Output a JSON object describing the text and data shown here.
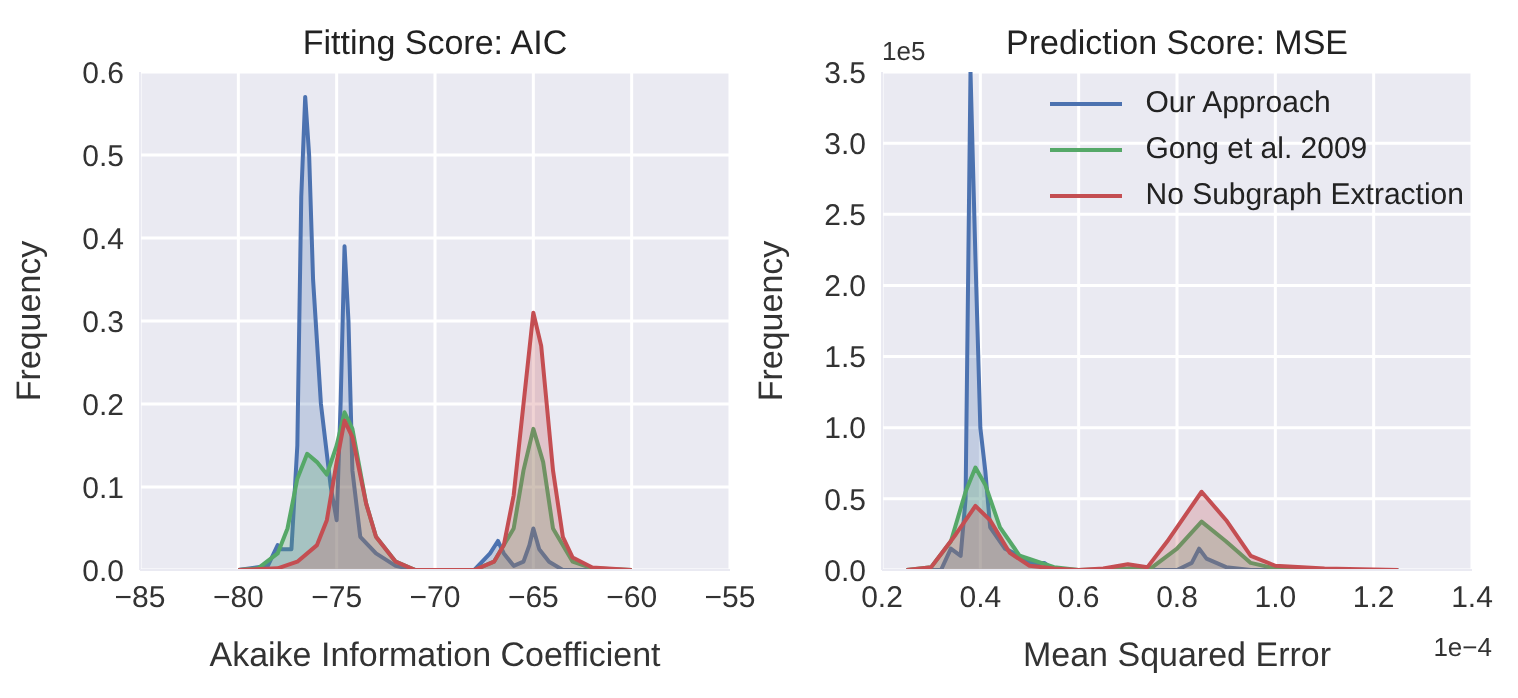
{
  "chart_data": [
    {
      "type": "area",
      "title": "Fitting Score: AIC",
      "xlabel": "Akaike Information Coefficient",
      "ylabel": "Frequency",
      "xlim": [
        -85,
        -55
      ],
      "xticks": [
        {
          "value": -85,
          "label": "−85"
        },
        {
          "value": -80,
          "label": "−80"
        },
        {
          "value": -75,
          "label": "−75"
        },
        {
          "value": -70,
          "label": "−70"
        },
        {
          "value": -65,
          "label": "−65"
        },
        {
          "value": -60,
          "label": "−60"
        },
        {
          "value": -55,
          "label": "−55"
        }
      ],
      "ylim": [
        0,
        0.6
      ],
      "yticks": [
        {
          "value": 0,
          "label": "0.0"
        },
        0.1,
        0.2,
        0.3,
        0.4,
        0.5,
        0.6
      ],
      "grid": true,
      "series": [
        {
          "color": "#4c72b0",
          "x": [
            -80,
            -78.5,
            -78,
            -77.8,
            -77.3,
            -77,
            -76.8,
            -76.6,
            -76.4,
            -76.2,
            -75.8,
            -75.3,
            -75,
            -74.8,
            -74.6,
            -74.4,
            -74.2,
            -73.8,
            -73,
            -72,
            -71,
            -69,
            -68,
            -67.2,
            -66.8,
            -66.5,
            -66,
            -65.5,
            -65.2,
            -65,
            -64.7,
            -64.2,
            -63.5,
            -60
          ],
          "values": [
            0,
            0.005,
            0.03,
            0.025,
            0.025,
            0.15,
            0.45,
            0.57,
            0.5,
            0.35,
            0.2,
            0.1,
            0.06,
            0.2,
            0.39,
            0.3,
            0.12,
            0.04,
            0.02,
            0.005,
            0,
            0,
            0,
            0.02,
            0.035,
            0.02,
            0.005,
            0.01,
            0.03,
            0.05,
            0.025,
            0.01,
            0,
            0
          ]
        },
        {
          "color": "#55a868",
          "x": [
            -80,
            -79,
            -78,
            -77.5,
            -77,
            -76.5,
            -76,
            -75.5,
            -75,
            -74.6,
            -74.2,
            -73.5,
            -73,
            -72,
            -71,
            -68,
            -67,
            -66,
            -65.5,
            -65,
            -64.5,
            -64,
            -63,
            -62,
            -60
          ],
          "values": [
            0,
            0.002,
            0.02,
            0.05,
            0.11,
            0.14,
            0.13,
            0.115,
            0.15,
            0.19,
            0.17,
            0.08,
            0.04,
            0.01,
            0,
            0,
            0.01,
            0.05,
            0.12,
            0.17,
            0.13,
            0.05,
            0.01,
            0.002,
            0
          ]
        },
        {
          "color": "#c44e52",
          "x": [
            -80,
            -78,
            -77,
            -76,
            -75.5,
            -75,
            -74.6,
            -74.2,
            -73.5,
            -73,
            -72,
            -71,
            -68,
            -67,
            -66.5,
            -66,
            -65.5,
            -65,
            -64.6,
            -64,
            -63.5,
            -63,
            -62,
            -60
          ],
          "values": [
            0,
            0.002,
            0.01,
            0.03,
            0.06,
            0.13,
            0.18,
            0.16,
            0.08,
            0.04,
            0.01,
            0,
            0,
            0.01,
            0.03,
            0.09,
            0.2,
            0.31,
            0.27,
            0.12,
            0.04,
            0.015,
            0.003,
            0
          ]
        }
      ]
    },
    {
      "type": "area",
      "title": "Prediction Score: MSE",
      "xlabel": "Mean Squared Error",
      "ylabel": "Frequency",
      "annotations": [
        "1e5",
        "1e−4"
      ],
      "xlim": [
        0.2,
        1.4
      ],
      "xticks": [
        0.2,
        0.4,
        0.6,
        0.8,
        {
          "value": 1,
          "label": "1.0"
        },
        1.2,
        1.4
      ],
      "ylim": [
        0,
        3.5
      ],
      "yticks": [
        {
          "value": 0,
          "label": "0.0"
        },
        0.5,
        {
          "value": 1,
          "label": "1.0"
        },
        1.5,
        {
          "value": 2,
          "label": "2.0"
        },
        2.5,
        {
          "value": 3,
          "label": "3.0"
        },
        3.5
      ],
      "grid": true,
      "legend": "top right",
      "series": [
        {
          "name": "Our Approach",
          "color": "#4c72b0",
          "x": [
            0.25,
            0.32,
            0.34,
            0.36,
            0.37,
            0.38,
            0.39,
            0.4,
            0.41,
            0.42,
            0.45,
            0.48,
            0.5,
            0.53,
            0.55,
            0.8,
            0.83,
            0.845,
            0.86,
            0.9,
            0.95,
            1.25
          ],
          "values": [
            0,
            0,
            0.15,
            0.1,
            0.5,
            3.5,
            2.2,
            1,
            0.7,
            0.3,
            0.15,
            0.1,
            0.05,
            0.05,
            0,
            0,
            0.05,
            0.15,
            0.08,
            0.02,
            0,
            0
          ]
        },
        {
          "name": "Gong et al. 2009",
          "color": "#55a868",
          "x": [
            0.25,
            0.3,
            0.34,
            0.37,
            0.39,
            0.41,
            0.44,
            0.48,
            0.55,
            0.6,
            0.7,
            0.75,
            0.8,
            0.85,
            0.9,
            0.95,
            1,
            1.1,
            1.25
          ],
          "values": [
            0,
            0.02,
            0.2,
            0.55,
            0.72,
            0.6,
            0.3,
            0.1,
            0.02,
            0,
            0.01,
            0.02,
            0.15,
            0.34,
            0.2,
            0.05,
            0.01,
            0,
            0
          ]
        },
        {
          "name": "No Subgraph Extraction",
          "color": "#c44e52",
          "x": [
            0.25,
            0.3,
            0.35,
            0.39,
            0.42,
            0.46,
            0.5,
            0.55,
            0.6,
            0.65,
            0.7,
            0.74,
            0.78,
            0.85,
            0.9,
            0.95,
            1,
            1.1,
            1.25
          ],
          "values": [
            0,
            0.02,
            0.25,
            0.45,
            0.35,
            0.12,
            0.03,
            0.01,
            0,
            0.01,
            0.04,
            0.02,
            0.2,
            0.55,
            0.35,
            0.1,
            0.03,
            0.01,
            0
          ]
        }
      ]
    }
  ]
}
